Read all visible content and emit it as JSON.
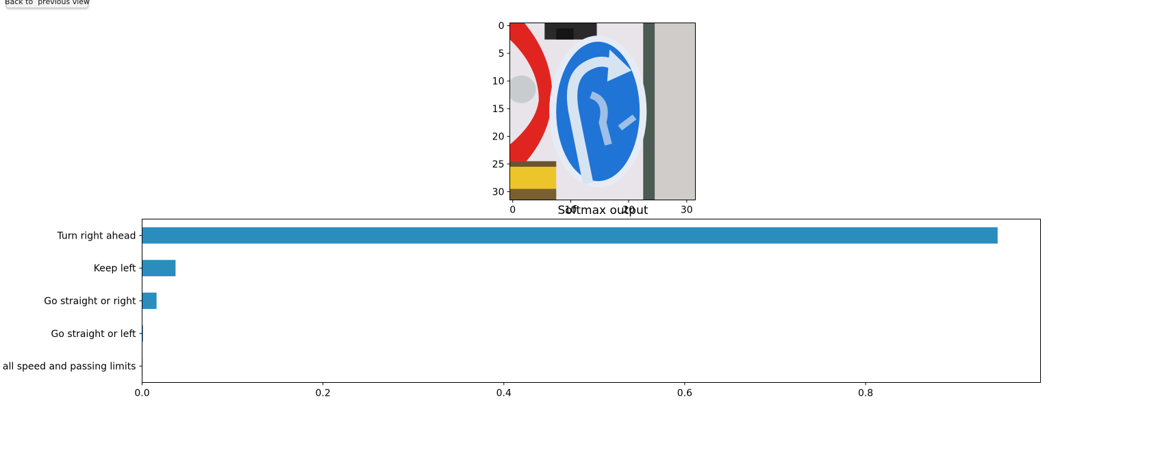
{
  "toolbar": {
    "back_label": "Back to  previous view"
  },
  "chart_data": [
    {
      "type": "image",
      "title": "",
      "image_description": "32x32 pixel traffic sign: blue circular sign with white arrow curving right; red sign edge on the left, yellow patch bottom-left",
      "x_ticks": [
        0,
        10,
        20,
        30
      ],
      "y_ticks": [
        0,
        5,
        10,
        15,
        20,
        25,
        30
      ],
      "xlim": [
        -0.5,
        31.5
      ],
      "ylim": [
        31.5,
        -0.5
      ]
    },
    {
      "type": "bar",
      "orientation": "horizontal",
      "title": "Softmax output",
      "xlabel": "",
      "ylabel": "",
      "categories": [
        "End of all speed and passing limits",
        "Go straight or left",
        "Go straight or right",
        "Keep left",
        "Turn right ahead"
      ],
      "values": [
        0.0005,
        0.001,
        0.016,
        0.037,
        0.946
      ],
      "x_ticks": [
        "0.0",
        "0.2",
        "0.4",
        "0.6",
        "0.8"
      ],
      "xlim": [
        0,
        0.9934
      ],
      "bar_color": "#2b8cbe",
      "grid": false
    }
  ]
}
